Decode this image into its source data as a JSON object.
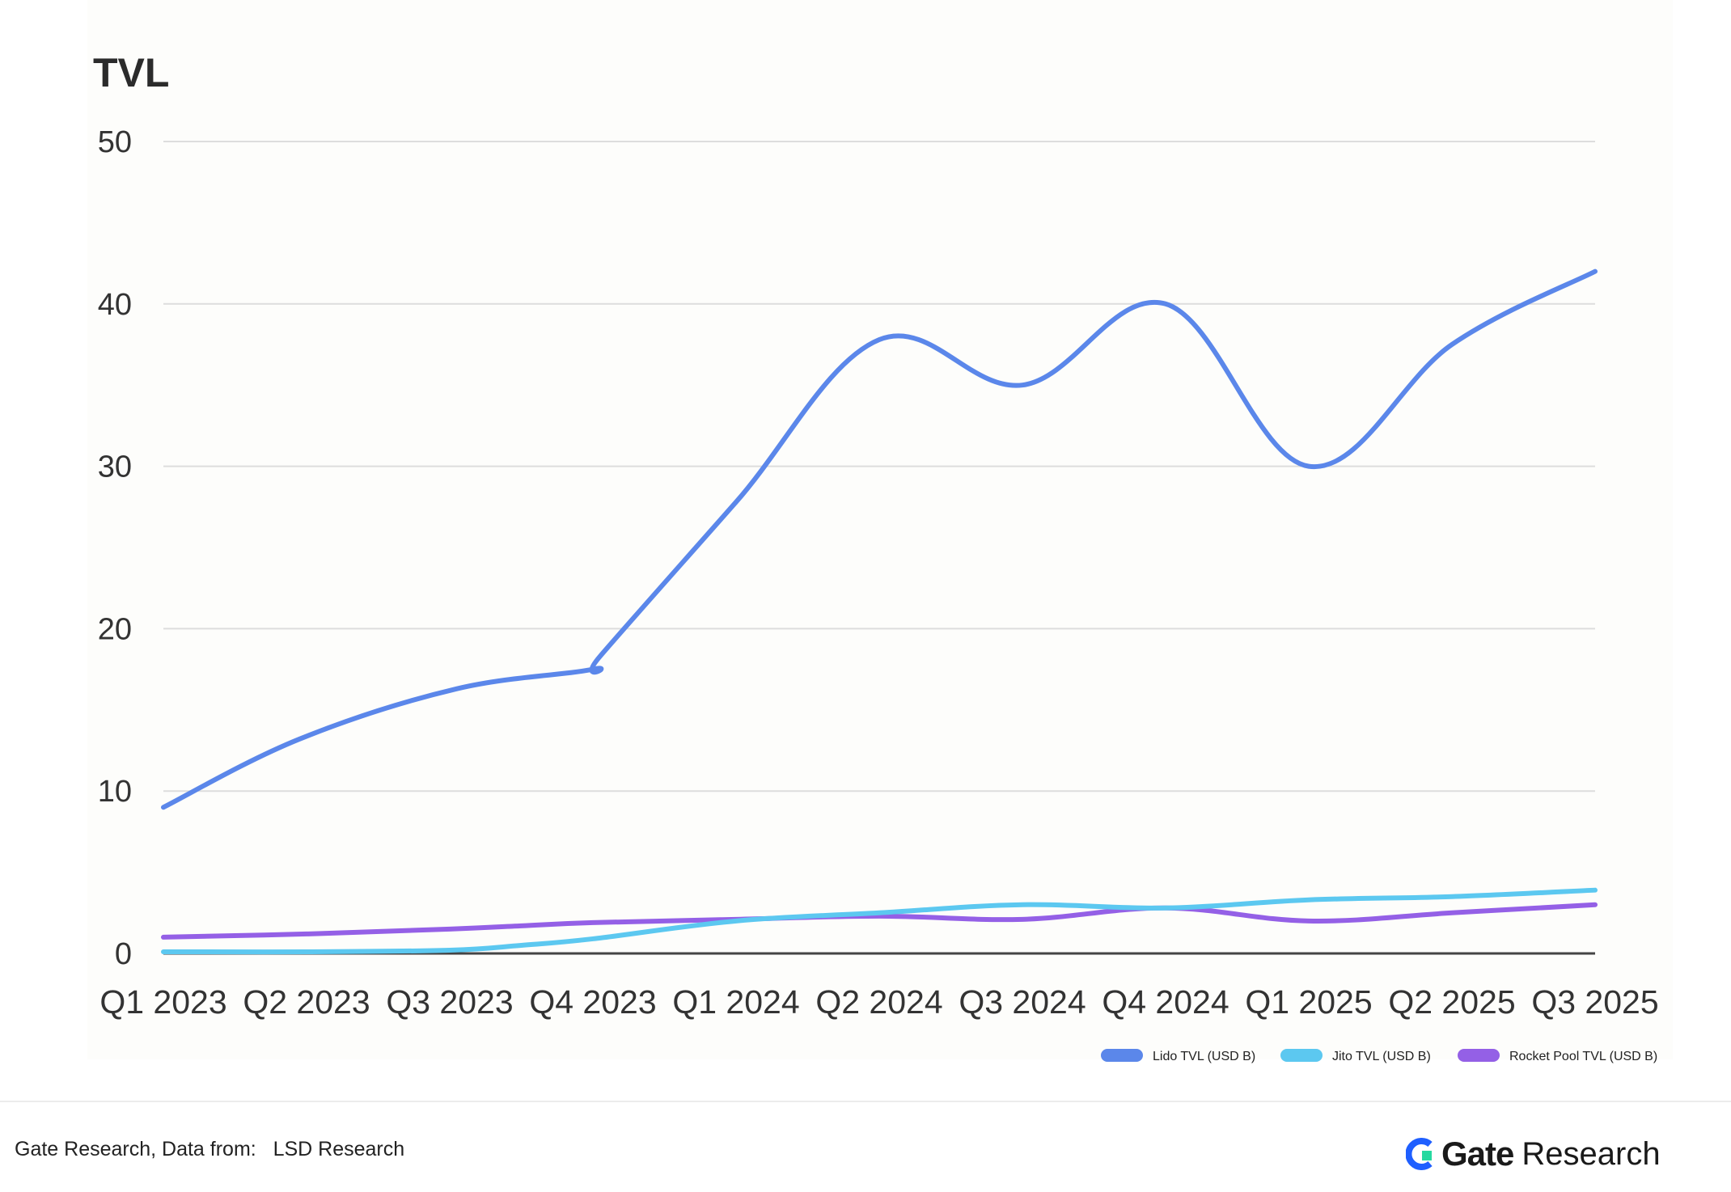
{
  "chart_data": {
    "type": "line",
    "title": "TVL",
    "xlabel": "",
    "ylabel": "",
    "categories": [
      "Q1 2023",
      "Q2 2023",
      "Q3 2023",
      "Q4 2023",
      "Q1 2024",
      "Q2 2024",
      "Q3 2024",
      "Q4 2024",
      "Q1 2025",
      "Q2 2025",
      "Q3 2025"
    ],
    "ylim": [
      0,
      50
    ],
    "yticks": [
      0,
      10,
      20,
      30,
      40,
      50
    ],
    "grid": true,
    "legend_position": "bottom-right",
    "series": [
      {
        "name": "Lido TVL (USD B)",
        "color": "#5b87ea",
        "values": [
          9.0,
          13.2,
          16.3,
          17.5,
          18.3,
          27.8,
          37.8,
          35.0,
          40.0,
          30.0,
          37.5,
          42.0
        ],
        "x": [
          0,
          0.95,
          2.05,
          3.0,
          3.05,
          4.0,
          5.0,
          6.0,
          7.0,
          8.0,
          9.0,
          10.0
        ]
      },
      {
        "name": "Jito TVL (USD B)",
        "color": "#5cc8f0",
        "values": [
          0.1,
          0.1,
          0.2,
          0.5,
          0.9,
          2.0,
          2.5,
          3.0,
          2.8,
          3.3,
          3.5,
          3.9
        ],
        "x": [
          0,
          1,
          2,
          2.5,
          3.0,
          4.0,
          5.0,
          6.0,
          7.0,
          8.0,
          9.0,
          10.0
        ]
      },
      {
        "name": "Rocket Pool TVL (USD B)",
        "color": "#9460e6",
        "values": [
          1.0,
          1.2,
          1.5,
          1.7,
          1.9,
          2.1,
          2.3,
          2.1,
          2.8,
          2.0,
          2.5,
          3.0
        ],
        "x": [
          0,
          1,
          2,
          2.5,
          3.0,
          4.0,
          5.0,
          6.0,
          7.0,
          8.0,
          9.0,
          10.0
        ]
      }
    ]
  },
  "footer": {
    "source": "Gate Research, Data from:   LSD Research",
    "brand_name": "Gate",
    "brand_sub": "Research"
  }
}
